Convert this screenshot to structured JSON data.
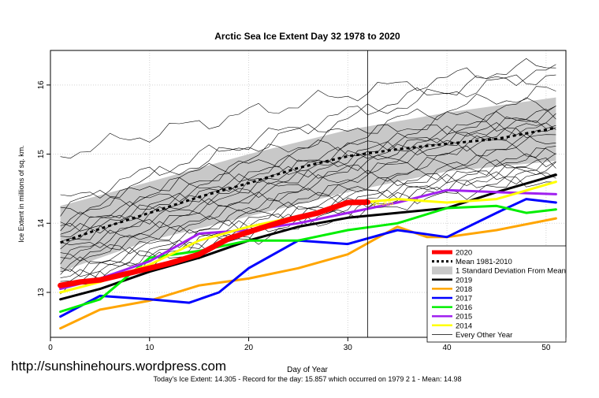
{
  "chart_data": {
    "type": "line",
    "title": "Arctic Sea Ice Extent Day 32 1978 to 2020",
    "xlabel": "Day of Year",
    "ylabel": "Ice Extent in millions of sq. km.",
    "xlim": [
      0,
      52
    ],
    "ylim": [
      12.35,
      16.5
    ],
    "xticks": [
      0,
      10,
      20,
      30,
      40,
      50
    ],
    "yticks": [
      13,
      14,
      15,
      16
    ],
    "marker_day": 32,
    "current_label": "14.305",
    "footer": "Today's Ice Extent: 14.305  - Record for the day: 15.857 which occurred on 1979 2 1  - Mean: 14.98",
    "legend_position": "bottom-right",
    "legend": [
      {
        "label": "2020",
        "color": "#ff0000",
        "style": "thick"
      },
      {
        "label": "Mean 1981-2010",
        "color": "#000000",
        "style": "dotted"
      },
      {
        "label": "1 Standard Deviation From Mean",
        "color": "#c8c8c8",
        "style": "box"
      },
      {
        "label": "2019",
        "color": "#000000",
        "style": "line"
      },
      {
        "label": "2018",
        "color": "#ffa500",
        "style": "line"
      },
      {
        "label": "2017",
        "color": "#0000ff",
        "style": "line"
      },
      {
        "label": "2016",
        "color": "#00ee00",
        "style": "line"
      },
      {
        "label": "2015",
        "color": "#a020f0",
        "style": "line"
      },
      {
        "label": "2014",
        "color": "#ffff00",
        "style": "line"
      },
      {
        "label": "Every Other Year",
        "color": "#000000",
        "style": "thin"
      }
    ],
    "band": {
      "x": [
        1,
        10,
        20,
        30,
        40,
        51
      ],
      "lower": [
        13.3,
        13.75,
        14.1,
        14.45,
        14.75,
        14.9
      ],
      "upper": [
        14.25,
        14.6,
        15.0,
        15.35,
        15.6,
        15.82
      ]
    },
    "mean": {
      "x": [
        1,
        5,
        10,
        15,
        20,
        25,
        30,
        35,
        40,
        45,
        51
      ],
      "y": [
        13.72,
        13.92,
        14.15,
        14.38,
        14.58,
        14.8,
        14.97,
        15.07,
        15.15,
        15.22,
        15.38
      ]
    },
    "every_other_year": [
      {
        "start": 14.3,
        "end": 16.2
      },
      {
        "start": 15.0,
        "end": 16.28
      },
      {
        "start": 14.2,
        "end": 16.15
      },
      {
        "start": 14.1,
        "end": 15.9
      },
      {
        "start": 14.05,
        "end": 15.75
      },
      {
        "start": 13.95,
        "end": 15.6
      },
      {
        "start": 13.9,
        "end": 15.55
      },
      {
        "start": 13.85,
        "end": 15.5
      },
      {
        "start": 13.8,
        "end": 15.45
      },
      {
        "start": 13.75,
        "end": 15.4
      },
      {
        "start": 13.7,
        "end": 15.35
      },
      {
        "start": 13.6,
        "end": 15.3
      },
      {
        "start": 13.55,
        "end": 15.2
      },
      {
        "start": 13.5,
        "end": 15.1
      },
      {
        "start": 13.45,
        "end": 15.0
      },
      {
        "start": 13.4,
        "end": 14.95
      },
      {
        "start": 13.3,
        "end": 14.9
      },
      {
        "start": 13.25,
        "end": 14.85
      },
      {
        "start": 13.2,
        "end": 14.8
      },
      {
        "start": 13.15,
        "end": 14.75
      },
      {
        "start": 13.1,
        "end": 14.7
      },
      {
        "start": 13.05,
        "end": 14.65
      }
    ],
    "series": [
      {
        "name": "2019",
        "color": "#000000",
        "width": 3,
        "x": [
          1,
          5,
          10,
          15,
          20,
          25,
          30,
          35,
          40,
          45,
          51
        ],
        "y": [
          12.9,
          13.05,
          13.3,
          13.5,
          13.75,
          13.95,
          14.08,
          14.15,
          14.22,
          14.45,
          14.7
        ]
      },
      {
        "name": "2018",
        "color": "#ffa500",
        "width": 3,
        "x": [
          1,
          5,
          10,
          15,
          20,
          25,
          30,
          35,
          38,
          40,
          45,
          51
        ],
        "y": [
          12.48,
          12.75,
          12.88,
          13.1,
          13.2,
          13.35,
          13.55,
          13.95,
          13.8,
          13.8,
          13.9,
          14.07
        ]
      },
      {
        "name": "2017",
        "color": "#0000ff",
        "width": 3,
        "x": [
          1,
          5,
          10,
          14,
          17,
          20,
          25,
          30,
          35,
          40,
          45,
          48,
          51
        ],
        "y": [
          12.65,
          12.95,
          12.9,
          12.85,
          13.0,
          13.35,
          13.75,
          13.7,
          13.9,
          13.8,
          14.15,
          14.35,
          14.3
        ]
      },
      {
        "name": "2016",
        "color": "#00ee00",
        "width": 3,
        "x": [
          1,
          5,
          10,
          15,
          20,
          25,
          30,
          35,
          40,
          45,
          48,
          51
        ],
        "y": [
          12.72,
          12.9,
          13.5,
          13.6,
          13.75,
          13.75,
          13.9,
          14.0,
          14.22,
          14.25,
          14.15,
          14.2
        ]
      },
      {
        "name": "2015",
        "color": "#a020f0",
        "width": 3,
        "x": [
          1,
          5,
          10,
          15,
          20,
          25,
          30,
          35,
          40,
          45,
          51
        ],
        "y": [
          13.05,
          13.2,
          13.45,
          13.85,
          13.9,
          14.0,
          14.15,
          14.3,
          14.48,
          14.45,
          14.42
        ]
      },
      {
        "name": "2014",
        "color": "#ffff00",
        "width": 3,
        "x": [
          1,
          5,
          10,
          15,
          20,
          25,
          30,
          35,
          40,
          45,
          51
        ],
        "y": [
          13.0,
          13.15,
          13.4,
          13.75,
          13.95,
          14.1,
          14.28,
          14.35,
          14.3,
          14.35,
          14.6
        ]
      },
      {
        "name": "2020",
        "color": "#ff0000",
        "width": 7,
        "x": [
          1,
          3,
          5,
          8,
          10,
          12,
          15,
          18,
          21,
          24,
          27,
          30,
          32
        ],
        "y": [
          13.1,
          13.15,
          13.18,
          13.28,
          13.35,
          13.42,
          13.55,
          13.78,
          13.92,
          14.05,
          14.15,
          14.3,
          14.305
        ]
      }
    ]
  },
  "watermark": "http://sunshinehours.wordpress.com"
}
